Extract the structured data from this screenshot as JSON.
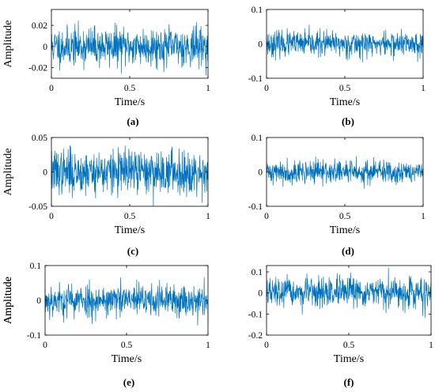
{
  "series_color": "#0072BD",
  "chart_data": [
    {
      "type": "line",
      "panel_label": "(a)",
      "xlabel": "Time/s",
      "ylabel": "Amplitude",
      "xlim": [
        0,
        1
      ],
      "ylim": [
        -0.03,
        0.035
      ],
      "xticks": [
        0,
        0.5,
        1
      ],
      "xtick_labels": [
        "0",
        "0.5",
        "1"
      ],
      "yticks": [
        -0.02,
        0,
        0.02
      ],
      "ytick_labels": [
        "-0.02",
        "0",
        "0.02"
      ],
      "grid": false,
      "signal": {
        "samples": 600,
        "std": 0.009,
        "min": -0.028,
        "max": 0.033,
        "seed": 11
      }
    },
    {
      "type": "line",
      "panel_label": "(b)",
      "xlabel": "Time/s",
      "ylabel": "",
      "xlim": [
        0,
        1
      ],
      "ylim": [
        -0.1,
        0.1
      ],
      "xticks": [
        0,
        0.5,
        1
      ],
      "xtick_labels": [
        "0",
        "0.5",
        "1"
      ],
      "yticks": [
        -0.1,
        0,
        0.1
      ],
      "ytick_labels": [
        "-0.1",
        "0",
        "0.1"
      ],
      "grid": false,
      "signal": {
        "samples": 600,
        "std": 0.018,
        "min": -0.055,
        "max": 0.06,
        "seed": 23
      }
    },
    {
      "type": "line",
      "panel_label": "(c)",
      "xlabel": "Time/s",
      "ylabel": "Amplitude",
      "xlim": [
        0,
        1
      ],
      "ylim": [
        -0.05,
        0.05
      ],
      "xticks": [
        0,
        0.5,
        1
      ],
      "xtick_labels": [
        "0",
        "0.5",
        "1"
      ],
      "yticks": [
        -0.05,
        0,
        0.05
      ],
      "ytick_labels": [
        "-0.05",
        "0",
        "0.05"
      ],
      "grid": false,
      "signal": {
        "samples": 600,
        "std": 0.016,
        "min": -0.05,
        "max": 0.045,
        "seed": 37
      }
    },
    {
      "type": "line",
      "panel_label": "(d)",
      "xlabel": "Time/s",
      "ylabel": "",
      "xlim": [
        0,
        1
      ],
      "ylim": [
        -0.1,
        0.1
      ],
      "xticks": [
        0,
        0.5,
        1
      ],
      "xtick_labels": [
        "0",
        "0.5",
        "1"
      ],
      "yticks": [
        -0.1,
        0,
        0.1
      ],
      "ytick_labels": [
        "-0.1",
        "0",
        "0.1"
      ],
      "grid": false,
      "signal": {
        "samples": 600,
        "std": 0.017,
        "min": -0.055,
        "max": 0.06,
        "seed": 41
      }
    },
    {
      "type": "line",
      "panel_label": "(e)",
      "xlabel": "Time/s",
      "ylabel": "Amplitude",
      "xlim": [
        0,
        1
      ],
      "ylim": [
        -0.1,
        0.1
      ],
      "xticks": [
        0,
        0.5,
        1
      ],
      "xtick_labels": [
        "0",
        "0.5",
        "1"
      ],
      "yticks": [
        -0.1,
        0,
        0.1
      ],
      "ytick_labels": [
        "-0.1",
        "0",
        "0.1"
      ],
      "grid": false,
      "signal": {
        "samples": 600,
        "std": 0.024,
        "min": -0.08,
        "max": 0.07,
        "seed": 53
      }
    },
    {
      "type": "line",
      "panel_label": "(f)",
      "xlabel": "Time/s",
      "ylabel": "Amplitude",
      "xlim": [
        0,
        1
      ],
      "ylim": [
        -0.2,
        0.13
      ],
      "xticks": [
        0,
        0.5,
        1
      ],
      "xtick_labels": [
        "0",
        "0.5",
        "1"
      ],
      "yticks": [
        -0.2,
        -0.1,
        0,
        0.1
      ],
      "ytick_labels": [
        "-0.2",
        "-0.1",
        "0",
        "0.1"
      ],
      "grid": false,
      "signal": {
        "samples": 600,
        "std": 0.035,
        "min": -0.12,
        "max": 0.12,
        "seed": 67
      }
    }
  ]
}
